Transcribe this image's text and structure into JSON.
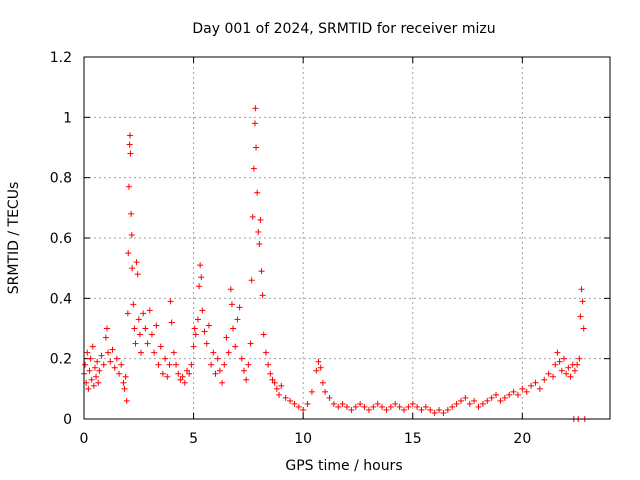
{
  "chart_data": {
    "type": "scatter",
    "title": "Day 001 of 2024, SRMTID for receiver mizu",
    "xlabel": "GPS time / hours",
    "ylabel": "SRMTID / TECUs",
    "xlim": [
      0,
      24
    ],
    "ylim": [
      0,
      1.2
    ],
    "xticks": [
      0,
      5,
      10,
      15,
      20
    ],
    "xtick_labels": [
      "0",
      "5",
      "10",
      "15",
      "20"
    ],
    "yticks": [
      0,
      0.2,
      0.4,
      0.6,
      0.8,
      1.0,
      1.2
    ],
    "ytick_labels": [
      "0",
      "0.2",
      "0.4",
      "0.6",
      "0.8",
      "1",
      "1.2"
    ],
    "grid": true,
    "marker": "+",
    "color": "#ff0000",
    "series": [
      {
        "name": "SRMTID",
        "points": [
          [
            0.0,
            0.15
          ],
          [
            0.05,
            0.18
          ],
          [
            0.1,
            0.12
          ],
          [
            0.15,
            0.22
          ],
          [
            0.2,
            0.1
          ],
          [
            0.25,
            0.16
          ],
          [
            0.3,
            0.2
          ],
          [
            0.35,
            0.13
          ],
          [
            0.4,
            0.24
          ],
          [
            0.45,
            0.11
          ],
          [
            0.5,
            0.17
          ],
          [
            0.55,
            0.14
          ],
          [
            0.6,
            0.19
          ],
          [
            0.65,
            0.12
          ],
          [
            0.7,
            0.16
          ],
          [
            0.8,
            0.21
          ],
          [
            0.9,
            0.18
          ],
          [
            1.0,
            0.27
          ],
          [
            1.05,
            0.3
          ],
          [
            1.1,
            0.22
          ],
          [
            1.2,
            0.19
          ],
          [
            1.3,
            0.23
          ],
          [
            1.4,
            0.17
          ],
          [
            1.5,
            0.2
          ],
          [
            1.6,
            0.15
          ],
          [
            1.7,
            0.18
          ],
          [
            1.8,
            0.12
          ],
          [
            1.85,
            0.1
          ],
          [
            1.9,
            0.14
          ],
          [
            1.95,
            0.06
          ],
          [
            2.0,
            0.35
          ],
          [
            2.02,
            0.55
          ],
          [
            2.05,
            0.77
          ],
          [
            2.08,
            0.91
          ],
          [
            2.1,
            0.94
          ],
          [
            2.12,
            0.88
          ],
          [
            2.15,
            0.68
          ],
          [
            2.18,
            0.61
          ],
          [
            2.2,
            0.5
          ],
          [
            2.25,
            0.38
          ],
          [
            2.3,
            0.3
          ],
          [
            2.35,
            0.25
          ],
          [
            2.4,
            0.52
          ],
          [
            2.45,
            0.48
          ],
          [
            2.5,
            0.33
          ],
          [
            2.55,
            0.28
          ],
          [
            2.6,
            0.22
          ],
          [
            2.7,
            0.35
          ],
          [
            2.8,
            0.3
          ],
          [
            2.9,
            0.25
          ],
          [
            3.0,
            0.36
          ],
          [
            3.1,
            0.28
          ],
          [
            3.2,
            0.22
          ],
          [
            3.3,
            0.31
          ],
          [
            3.4,
            0.18
          ],
          [
            3.5,
            0.24
          ],
          [
            3.6,
            0.15
          ],
          [
            3.7,
            0.2
          ],
          [
            3.8,
            0.14
          ],
          [
            3.9,
            0.18
          ],
          [
            3.95,
            0.39
          ],
          [
            4.0,
            0.32
          ],
          [
            4.1,
            0.22
          ],
          [
            4.2,
            0.18
          ],
          [
            4.3,
            0.15
          ],
          [
            4.4,
            0.13
          ],
          [
            4.5,
            0.14
          ],
          [
            4.6,
            0.12
          ],
          [
            4.7,
            0.16
          ],
          [
            4.8,
            0.15
          ],
          [
            4.9,
            0.18
          ],
          [
            5.0,
            0.24
          ],
          [
            5.05,
            0.3
          ],
          [
            5.1,
            0.28
          ],
          [
            5.2,
            0.33
          ],
          [
            5.25,
            0.44
          ],
          [
            5.3,
            0.51
          ],
          [
            5.35,
            0.47
          ],
          [
            5.4,
            0.36
          ],
          [
            5.5,
            0.29
          ],
          [
            5.6,
            0.25
          ],
          [
            5.7,
            0.31
          ],
          [
            5.8,
            0.18
          ],
          [
            5.9,
            0.22
          ],
          [
            6.0,
            0.15
          ],
          [
            6.1,
            0.2
          ],
          [
            6.2,
            0.16
          ],
          [
            6.3,
            0.12
          ],
          [
            6.4,
            0.18
          ],
          [
            6.5,
            0.27
          ],
          [
            6.6,
            0.22
          ],
          [
            6.7,
            0.43
          ],
          [
            6.75,
            0.38
          ],
          [
            6.8,
            0.3
          ],
          [
            6.9,
            0.24
          ],
          [
            7.0,
            0.33
          ],
          [
            7.1,
            0.37
          ],
          [
            7.2,
            0.2
          ],
          [
            7.3,
            0.16
          ],
          [
            7.4,
            0.13
          ],
          [
            7.5,
            0.18
          ],
          [
            7.6,
            0.25
          ],
          [
            7.65,
            0.46
          ],
          [
            7.7,
            0.67
          ],
          [
            7.75,
            0.83
          ],
          [
            7.8,
            0.98
          ],
          [
            7.82,
            1.03
          ],
          [
            7.85,
            0.9
          ],
          [
            7.9,
            0.75
          ],
          [
            7.95,
            0.62
          ],
          [
            8.0,
            0.58
          ],
          [
            8.05,
            0.66
          ],
          [
            8.1,
            0.49
          ],
          [
            8.15,
            0.41
          ],
          [
            8.2,
            0.28
          ],
          [
            8.3,
            0.22
          ],
          [
            8.4,
            0.18
          ],
          [
            8.5,
            0.15
          ],
          [
            8.6,
            0.13
          ],
          [
            8.7,
            0.12
          ],
          [
            8.8,
            0.1
          ],
          [
            8.9,
            0.08
          ],
          [
            9.0,
            0.11
          ],
          [
            9.2,
            0.07
          ],
          [
            9.4,
            0.06
          ],
          [
            9.6,
            0.05
          ],
          [
            9.8,
            0.04
          ],
          [
            10.0,
            0.03
          ],
          [
            10.2,
            0.05
          ],
          [
            10.4,
            0.09
          ],
          [
            10.6,
            0.16
          ],
          [
            10.7,
            0.19
          ],
          [
            10.8,
            0.17
          ],
          [
            10.9,
            0.12
          ],
          [
            11.0,
            0.09
          ],
          [
            11.2,
            0.07
          ],
          [
            11.4,
            0.05
          ],
          [
            11.6,
            0.04
          ],
          [
            11.8,
            0.05
          ],
          [
            12.0,
            0.04
          ],
          [
            12.2,
            0.03
          ],
          [
            12.4,
            0.04
          ],
          [
            12.6,
            0.05
          ],
          [
            12.8,
            0.04
          ],
          [
            13.0,
            0.03
          ],
          [
            13.2,
            0.04
          ],
          [
            13.4,
            0.05
          ],
          [
            13.6,
            0.04
          ],
          [
            13.8,
            0.03
          ],
          [
            14.0,
            0.04
          ],
          [
            14.2,
            0.05
          ],
          [
            14.4,
            0.04
          ],
          [
            14.6,
            0.03
          ],
          [
            14.8,
            0.04
          ],
          [
            15.0,
            0.05
          ],
          [
            15.2,
            0.04
          ],
          [
            15.4,
            0.03
          ],
          [
            15.6,
            0.04
          ],
          [
            15.8,
            0.03
          ],
          [
            16.0,
            0.02
          ],
          [
            16.2,
            0.03
          ],
          [
            16.4,
            0.02
          ],
          [
            16.6,
            0.03
          ],
          [
            16.8,
            0.04
          ],
          [
            17.0,
            0.05
          ],
          [
            17.2,
            0.06
          ],
          [
            17.4,
            0.07
          ],
          [
            17.6,
            0.05
          ],
          [
            17.8,
            0.06
          ],
          [
            18.0,
            0.04
          ],
          [
            18.2,
            0.05
          ],
          [
            18.4,
            0.06
          ],
          [
            18.6,
            0.07
          ],
          [
            18.8,
            0.08
          ],
          [
            19.0,
            0.06
          ],
          [
            19.2,
            0.07
          ],
          [
            19.4,
            0.08
          ],
          [
            19.6,
            0.09
          ],
          [
            19.8,
            0.08
          ],
          [
            20.0,
            0.1
          ],
          [
            20.2,
            0.09
          ],
          [
            20.4,
            0.11
          ],
          [
            20.6,
            0.12
          ],
          [
            20.8,
            0.1
          ],
          [
            21.0,
            0.13
          ],
          [
            21.2,
            0.15
          ],
          [
            21.4,
            0.14
          ],
          [
            21.5,
            0.18
          ],
          [
            21.6,
            0.22
          ],
          [
            21.7,
            0.19
          ],
          [
            21.8,
            0.16
          ],
          [
            21.9,
            0.2
          ],
          [
            22.0,
            0.15
          ],
          [
            22.1,
            0.17
          ],
          [
            22.2,
            0.14
          ],
          [
            22.3,
            0.18
          ],
          [
            22.35,
            0.0
          ],
          [
            22.4,
            0.16
          ],
          [
            22.5,
            0.18
          ],
          [
            22.55,
            0.0
          ],
          [
            22.6,
            0.2
          ],
          [
            22.65,
            0.34
          ],
          [
            22.7,
            0.43
          ],
          [
            22.75,
            0.39
          ],
          [
            22.8,
            0.3
          ],
          [
            22.85,
            0.0
          ]
        ]
      }
    ]
  }
}
